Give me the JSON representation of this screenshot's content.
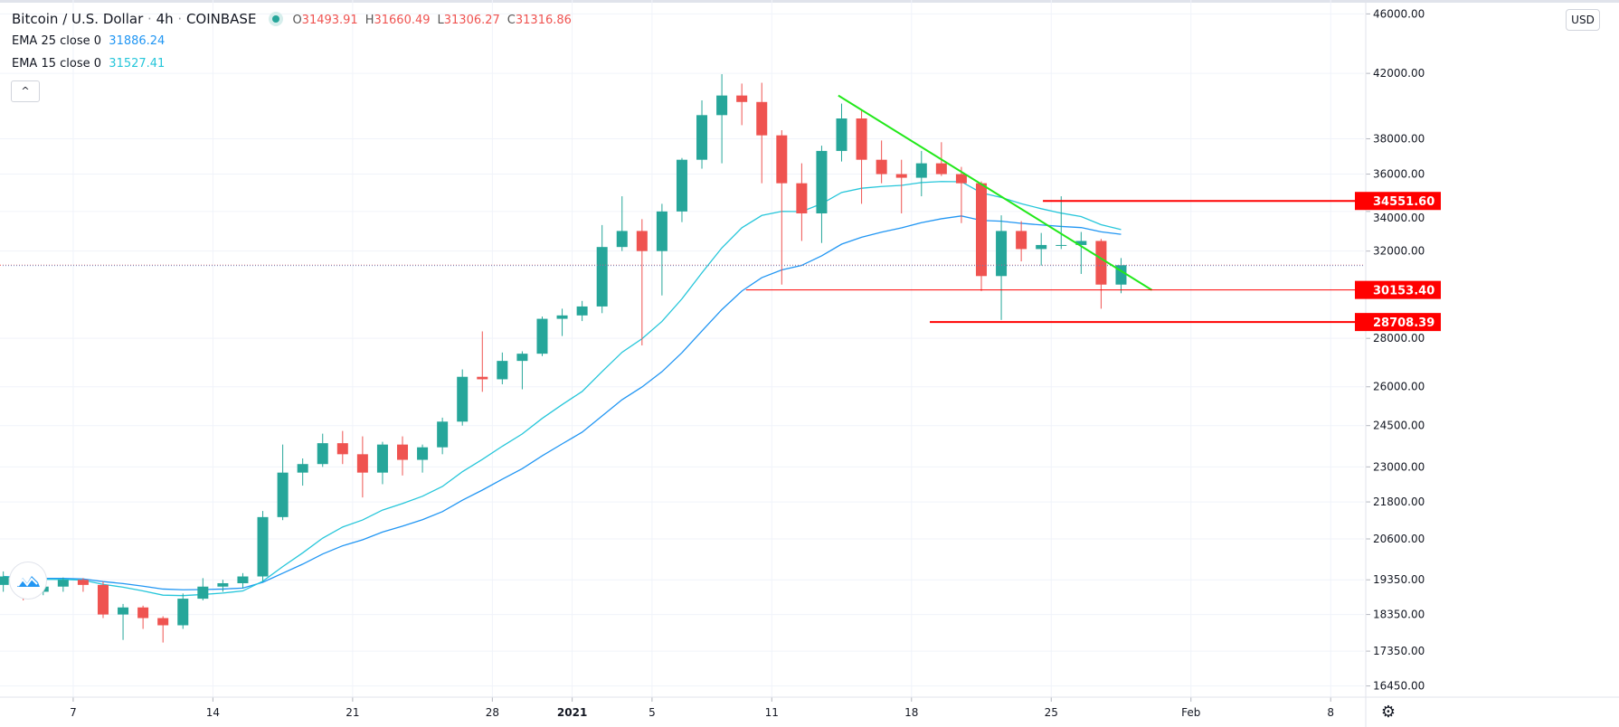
{
  "header": {
    "symbol": "Bitcoin / U.S. Dollar",
    "sep1": " · ",
    "interval": "4h",
    "sep2": " · ",
    "exchange": "COINBASE",
    "ohlc": {
      "o_label": "O",
      "o": "31493.91",
      "h_label": "H",
      "h": "31660.49",
      "l_label": "L",
      "l": "31306.27",
      "c_label": "C",
      "c": "31316.86"
    },
    "status_icon": "market-open-dot"
  },
  "indicators": [
    {
      "label": "EMA 25 close 0",
      "value": "31886.24",
      "color": "#2196f3",
      "period": 25
    },
    {
      "label": "EMA 15 close 0",
      "value": "31527.41",
      "color": "#26c6da",
      "period": 15
    }
  ],
  "collapse_icon": "chevron-up-icon",
  "collapse_glyph": "^",
  "currency_label": "USD",
  "settings_icon": "gear-icon",
  "logo_icon": "tradingview-logo",
  "colors": {
    "up": "#26a69a",
    "down": "#ef5350",
    "trendline": "#22e81a",
    "level": "#ff0000",
    "grid": "#f0f3fa"
  },
  "chart_data": {
    "type": "candlestick",
    "title": "Bitcoin / U.S. Dollar · 4h · COINBASE",
    "y_scale": "log",
    "ylim": [
      16170,
      46990
    ],
    "xlim": [
      "2020-12-03T08:00",
      "2021-02-09T16:00"
    ],
    "grid": true,
    "y_ticks": [
      46000,
      42000,
      38000,
      36000,
      34000,
      32000,
      28000,
      26000,
      24500,
      23000,
      21800,
      20600,
      19350,
      18350,
      17350,
      16450
    ],
    "y_tick_labels": [
      "46000.00",
      "42000.00",
      "38000.00",
      "36000.00",
      "34000.00",
      "32000.00",
      "28000.00",
      "26000.00",
      "24500.00",
      "23000.00",
      "21800.00",
      "20600.00",
      "19350.00",
      "18350.00",
      "17350.00",
      "16450.00"
    ],
    "x_ticks": [
      {
        "date": "2020-12-07",
        "label": "7"
      },
      {
        "date": "2020-12-14",
        "label": "14"
      },
      {
        "date": "2020-12-21",
        "label": "21"
      },
      {
        "date": "2020-12-28",
        "label": "28"
      },
      {
        "date": "2021-01-01",
        "label": "2021",
        "bold": true
      },
      {
        "date": "2021-01-05",
        "label": "5"
      },
      {
        "date": "2021-01-11",
        "label": "11"
      },
      {
        "date": "2021-01-18",
        "label": "18"
      },
      {
        "date": "2021-01-25",
        "label": "25"
      },
      {
        "date": "2021-02-01",
        "label": "Feb"
      },
      {
        "date": "2021-02-08",
        "label": "8"
      }
    ],
    "candles": [
      {
        "d": "2020-12-03",
        "o": 19200,
        "h": 19600,
        "l": 19000,
        "c": 19450
      },
      {
        "d": "2020-12-04",
        "o": 19450,
        "h": 19500,
        "l": 18750,
        "c": 19000
      },
      {
        "d": "2020-12-05",
        "o": 19000,
        "h": 19250,
        "l": 18900,
        "c": 19150
      },
      {
        "d": "2020-12-06",
        "o": 19150,
        "h": 19420,
        "l": 19000,
        "c": 19350
      },
      {
        "d": "2020-12-07",
        "o": 19350,
        "h": 19400,
        "l": 19000,
        "c": 19200
      },
      {
        "d": "2020-12-08",
        "o": 19200,
        "h": 19300,
        "l": 18250,
        "c": 18350
      },
      {
        "d": "2020-12-09",
        "o": 18350,
        "h": 18650,
        "l": 17650,
        "c": 18550
      },
      {
        "d": "2020-12-10",
        "o": 18550,
        "h": 18600,
        "l": 17950,
        "c": 18250
      },
      {
        "d": "2020-12-11",
        "o": 18250,
        "h": 18300,
        "l": 17580,
        "c": 18050
      },
      {
        "d": "2020-12-12",
        "o": 18050,
        "h": 18950,
        "l": 17950,
        "c": 18800
      },
      {
        "d": "2020-12-13",
        "o": 18800,
        "h": 19400,
        "l": 18750,
        "c": 19150
      },
      {
        "d": "2020-12-14",
        "o": 19150,
        "h": 19350,
        "l": 19000,
        "c": 19250
      },
      {
        "d": "2020-12-15",
        "o": 19250,
        "h": 19550,
        "l": 19100,
        "c": 19450
      },
      {
        "d": "2020-12-16",
        "o": 19450,
        "h": 21500,
        "l": 19300,
        "c": 21300
      },
      {
        "d": "2020-12-17",
        "o": 21300,
        "h": 23800,
        "l": 21200,
        "c": 22800
      },
      {
        "d": "2020-12-18",
        "o": 22800,
        "h": 23300,
        "l": 22350,
        "c": 23100
      },
      {
        "d": "2020-12-19",
        "o": 23100,
        "h": 24200,
        "l": 23000,
        "c": 23850
      },
      {
        "d": "2020-12-20",
        "o": 23850,
        "h": 24300,
        "l": 23100,
        "c": 23450
      },
      {
        "d": "2020-12-21",
        "o": 23450,
        "h": 24100,
        "l": 21950,
        "c": 22800
      },
      {
        "d": "2020-12-22",
        "o": 22800,
        "h": 23900,
        "l": 22400,
        "c": 23800
      },
      {
        "d": "2020-12-23",
        "o": 23800,
        "h": 24100,
        "l": 22700,
        "c": 23250
      },
      {
        "d": "2020-12-24",
        "o": 23250,
        "h": 23800,
        "l": 22800,
        "c": 23700
      },
      {
        "d": "2020-12-25",
        "o": 23700,
        "h": 24800,
        "l": 23450,
        "c": 24650
      },
      {
        "d": "2020-12-26",
        "o": 24650,
        "h": 26700,
        "l": 24500,
        "c": 26400
      },
      {
        "d": "2020-12-27",
        "o": 26400,
        "h": 28300,
        "l": 25800,
        "c": 26300
      },
      {
        "d": "2020-12-28",
        "o": 26300,
        "h": 27400,
        "l": 26100,
        "c": 27050
      },
      {
        "d": "2020-12-29",
        "o": 27050,
        "h": 27450,
        "l": 25900,
        "c": 27350
      },
      {
        "d": "2020-12-30",
        "o": 27350,
        "h": 28950,
        "l": 27250,
        "c": 28850
      },
      {
        "d": "2020-12-31",
        "o": 28850,
        "h": 29300,
        "l": 28100,
        "c": 29000
      },
      {
        "d": "2021-01-01",
        "o": 29000,
        "h": 29650,
        "l": 28750,
        "c": 29400
      },
      {
        "d": "2021-01-02",
        "o": 29400,
        "h": 33300,
        "l": 29100,
        "c": 32200
      },
      {
        "d": "2021-01-03",
        "o": 32200,
        "h": 34800,
        "l": 32000,
        "c": 33000
      },
      {
        "d": "2021-01-04",
        "o": 33000,
        "h": 33600,
        "l": 27700,
        "c": 32000
      },
      {
        "d": "2021-01-05",
        "o": 32000,
        "h": 34400,
        "l": 29900,
        "c": 34000
      },
      {
        "d": "2021-01-06",
        "o": 34000,
        "h": 36900,
        "l": 33450,
        "c": 36800
      },
      {
        "d": "2021-01-07",
        "o": 36800,
        "h": 40300,
        "l": 36300,
        "c": 39400
      },
      {
        "d": "2021-01-08",
        "o": 39400,
        "h": 41950,
        "l": 36600,
        "c": 40600
      },
      {
        "d": "2021-01-09",
        "o": 40600,
        "h": 41350,
        "l": 38800,
        "c": 40200
      },
      {
        "d": "2021-01-10",
        "o": 40200,
        "h": 41400,
        "l": 35500,
        "c": 38200
      },
      {
        "d": "2021-01-11",
        "o": 38200,
        "h": 38500,
        "l": 30400,
        "c": 35500
      },
      {
        "d": "2021-01-12",
        "o": 35500,
        "h": 36600,
        "l": 32500,
        "c": 33900
      },
      {
        "d": "2021-01-13",
        "o": 33900,
        "h": 37600,
        "l": 32400,
        "c": 37300
      },
      {
        "d": "2021-01-14",
        "o": 37300,
        "h": 40100,
        "l": 36700,
        "c": 39200
      },
      {
        "d": "2021-01-15",
        "o": 39200,
        "h": 39700,
        "l": 34400,
        "c": 36800
      },
      {
        "d": "2021-01-16",
        "o": 36800,
        "h": 37900,
        "l": 35500,
        "c": 36000
      },
      {
        "d": "2021-01-17",
        "o": 36000,
        "h": 36800,
        "l": 33900,
        "c": 35800
      },
      {
        "d": "2021-01-18",
        "o": 35800,
        "h": 37300,
        "l": 34800,
        "c": 36600
      },
      {
        "d": "2021-01-19",
        "o": 36600,
        "h": 37800,
        "l": 35900,
        "c": 36000
      },
      {
        "d": "2021-01-20",
        "o": 36000,
        "h": 36400,
        "l": 33400,
        "c": 35500
      },
      {
        "d": "2021-01-21",
        "o": 35500,
        "h": 35600,
        "l": 30100,
        "c": 30800
      },
      {
        "d": "2021-01-22",
        "o": 30800,
        "h": 33800,
        "l": 28800,
        "c": 33000
      },
      {
        "d": "2021-01-23",
        "o": 33000,
        "h": 33500,
        "l": 31500,
        "c": 32100
      },
      {
        "d": "2021-01-24",
        "o": 32100,
        "h": 32900,
        "l": 31300,
        "c": 32300
      },
      {
        "d": "2021-01-25",
        "o": 32300,
        "h": 34800,
        "l": 32100,
        "c": 32300
      },
      {
        "d": "2021-01-26",
        "o": 32300,
        "h": 32950,
        "l": 30900,
        "c": 32500
      },
      {
        "d": "2021-01-27",
        "o": 32500,
        "h": 32600,
        "l": 29300,
        "c": 30400
      },
      {
        "d": "2021-01-28",
        "o": 30400,
        "h": 31660,
        "l": 30000,
        "c": 31317
      }
    ],
    "current_price": {
      "value": 31316.86
    },
    "drawings": [
      {
        "type": "trendline",
        "from": {
          "date": "2021-01-14T08:00",
          "price": 40600
        },
        "to": {
          "date": "2021-01-30T01:00",
          "price": 30150
        },
        "color": "#22e81a"
      },
      {
        "type": "horizontal_ray",
        "from_date": "2021-01-24T14:00",
        "price": 34551.6,
        "label": "34551.60",
        "color": "#ff0000",
        "weight": "thick"
      },
      {
        "type": "horizontal_ray",
        "from_date": "2021-01-09T17:00",
        "price": 30153.4,
        "label": "30153.40",
        "color": "#ff0000",
        "weight": "thin"
      },
      {
        "type": "horizontal_ray",
        "from_date": "2021-01-18T22:00",
        "price": 28708.39,
        "label": "28708.39",
        "color": "#ff0000",
        "weight": "thick"
      }
    ]
  }
}
